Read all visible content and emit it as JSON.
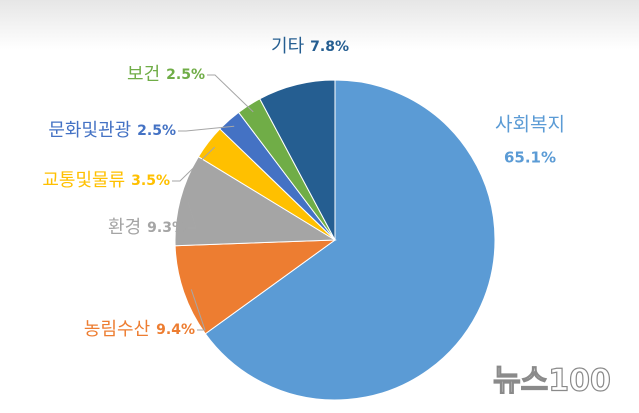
{
  "chart_data": {
    "type": "pie",
    "categories": [
      "사회복지",
      "농림수산",
      "환경",
      "교통및물류",
      "문화및관광",
      "보건",
      "기타"
    ],
    "values": [
      65.1,
      9.4,
      9.3,
      3.5,
      2.5,
      2.5,
      7.8
    ],
    "value_labels": [
      "65.1%",
      "9.4%",
      "9.3%",
      "3.5%",
      "2.5%",
      "2.5%",
      "7.8%"
    ],
    "colors": [
      "#5b9bd5",
      "#ed7d31",
      "#a5a5a5",
      "#ffc000",
      "#4472c4",
      "#70ad47",
      "#255e91"
    ],
    "watermark": "뉴스100"
  }
}
